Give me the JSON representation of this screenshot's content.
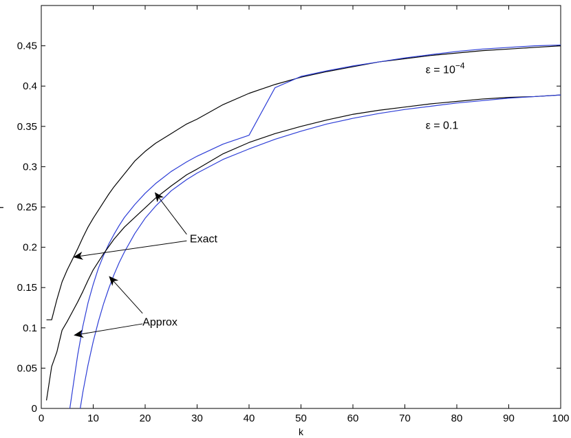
{
  "chart_data": {
    "type": "line",
    "xlabel": "k",
    "ylabel": "r",
    "xlim": [
      0,
      100
    ],
    "ylim": [
      0,
      0.5
    ],
    "xticks": [
      0,
      10,
      20,
      30,
      40,
      50,
      60,
      70,
      80,
      90,
      100
    ],
    "yticks": [
      0,
      0.05,
      0.1,
      0.15,
      0.2,
      0.25,
      0.3,
      0.35,
      0.4,
      0.45
    ],
    "yticklabels": [
      "0",
      "0.05",
      "0.1",
      "0.15",
      "0.2",
      "0.25",
      "0.3",
      "0.35",
      "0.4",
      "0.45"
    ],
    "grid": false,
    "colors": {
      "exact": "#000000",
      "approx": "#2b3cd6",
      "axes": "#000000"
    },
    "series": [
      {
        "group": "exact",
        "curve": "eps_1e-4",
        "x": [
          1,
          2,
          3,
          4,
          5,
          6,
          7,
          8,
          9,
          10,
          11,
          12,
          13,
          14,
          15,
          16,
          18,
          20,
          22,
          25,
          28,
          30,
          35,
          40,
          45,
          50,
          55,
          60,
          65,
          70,
          75,
          80,
          85,
          90,
          95,
          100
        ],
        "y": [
          0.11,
          0.11,
          0.135,
          0.157,
          0.172,
          0.185,
          0.198,
          0.212,
          0.225,
          0.236,
          0.246,
          0.256,
          0.266,
          0.275,
          0.283,
          0.291,
          0.307,
          0.319,
          0.329,
          0.341,
          0.353,
          0.359,
          0.377,
          0.391,
          0.402,
          0.411,
          0.418,
          0.424,
          0.43,
          0.434,
          0.438,
          0.441,
          0.444,
          0.446,
          0.448,
          0.45
        ]
      },
      {
        "group": "approx",
        "curve": "eps_1e-4",
        "x": [
          5.5,
          6,
          7,
          8,
          9,
          10,
          11,
          12,
          13,
          14,
          15,
          16,
          18,
          20,
          22,
          25,
          28,
          30,
          35,
          40,
          45,
          50,
          55,
          60,
          65,
          70,
          75,
          80,
          85,
          90,
          95,
          100
        ],
        "y": [
          0.0,
          0.022,
          0.066,
          0.102,
          0.131,
          0.154,
          0.174,
          0.19,
          0.204,
          0.216,
          0.227,
          0.237,
          0.253,
          0.267,
          0.279,
          0.294,
          0.306,
          0.313,
          0.328,
          0.339,
          0.398,
          0.412,
          0.419,
          0.425,
          0.43,
          0.435,
          0.439,
          0.443,
          0.446,
          0.448,
          0.45,
          0.451
        ]
      },
      {
        "group": "exact",
        "curve": "eps_0.1",
        "x": [
          1,
          2,
          3,
          4,
          5,
          6,
          7,
          8,
          9,
          10,
          12,
          14,
          16,
          18,
          20,
          22,
          25,
          28,
          30,
          35,
          40,
          45,
          50,
          55,
          60,
          65,
          70,
          75,
          80,
          85,
          90,
          95,
          100
        ],
        "y": [
          0.01,
          0.052,
          0.07,
          0.097,
          0.108,
          0.12,
          0.132,
          0.145,
          0.159,
          0.172,
          0.192,
          0.21,
          0.225,
          0.237,
          0.249,
          0.261,
          0.276,
          0.29,
          0.297,
          0.316,
          0.33,
          0.341,
          0.35,
          0.358,
          0.365,
          0.37,
          0.374,
          0.378,
          0.381,
          0.384,
          0.386,
          0.387,
          0.389
        ]
      },
      {
        "group": "approx",
        "curve": "eps_0.1",
        "x": [
          7.5,
          8,
          9,
          10,
          11,
          12,
          13,
          14,
          15,
          16,
          18,
          20,
          22,
          25,
          28,
          30,
          35,
          40,
          45,
          50,
          55,
          60,
          65,
          70,
          75,
          80,
          85,
          90,
          95,
          100
        ],
        "y": [
          0.0,
          0.02,
          0.054,
          0.083,
          0.108,
          0.13,
          0.149,
          0.166,
          0.181,
          0.194,
          0.217,
          0.236,
          0.251,
          0.27,
          0.284,
          0.292,
          0.309,
          0.322,
          0.334,
          0.344,
          0.353,
          0.36,
          0.366,
          0.371,
          0.375,
          0.379,
          0.382,
          0.385,
          0.387,
          0.389
        ]
      }
    ],
    "annotations": [
      {
        "text": "ε = 10",
        "superscript": "−4",
        "x": 74,
        "y": 0.416
      },
      {
        "text": "ε = 0.1",
        "x": 74,
        "y": 0.347
      },
      {
        "text": "Exact",
        "x": 28.6,
        "y": 0.206
      },
      {
        "text": "Approx",
        "x": 19.5,
        "y": 0.103
      }
    ],
    "arrows": [
      {
        "from_x": 28,
        "from_y": 0.216,
        "to_x": 22,
        "to_y": 0.267
      },
      {
        "from_x": 28,
        "from_y": 0.208,
        "to_x": 6.4,
        "to_y": 0.188
      },
      {
        "from_x": 19.5,
        "from_y": 0.118,
        "to_x": 13.2,
        "to_y": 0.163
      },
      {
        "from_x": 19.5,
        "from_y": 0.105,
        "to_x": 6.5,
        "to_y": 0.091
      }
    ]
  }
}
